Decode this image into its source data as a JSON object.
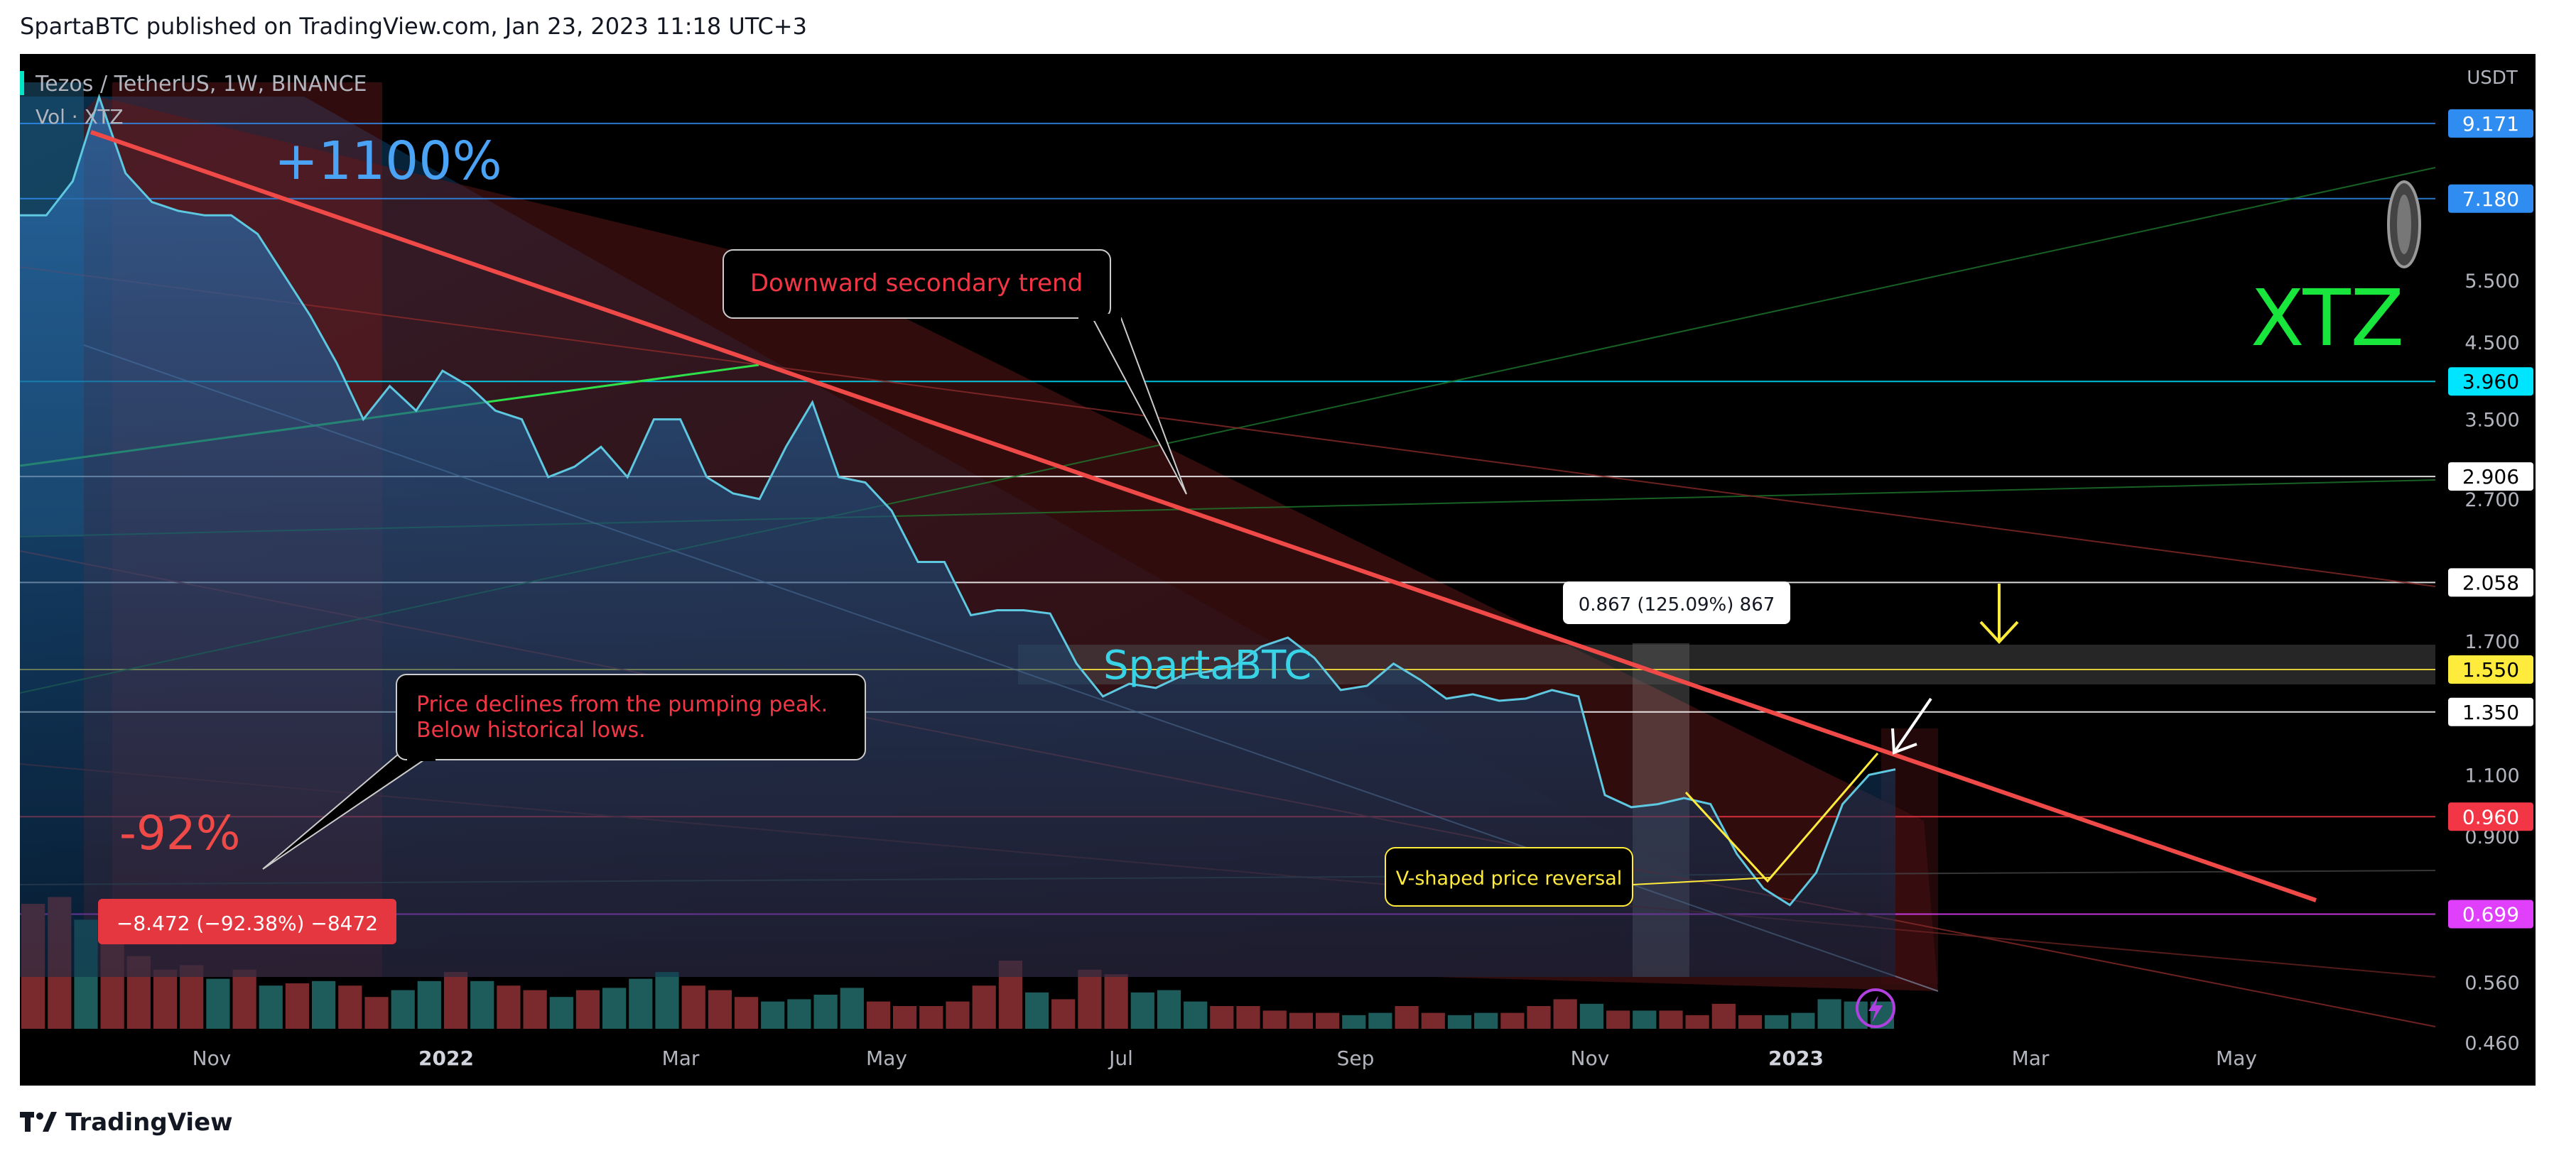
{
  "header": {
    "publisher_text": "SpartaBTC published on TradingView.com, Jan 23, 2023 11:18 UTC+3"
  },
  "footer": {
    "brand": "TradingView"
  },
  "colors": {
    "background": "#000000",
    "price_line": "#5ec8e0",
    "trend_line": "#e8413e",
    "volume_up": "#1d5c5a",
    "volume_down": "#7a2a2c",
    "accent_green": "#19e63c",
    "accent_blue": "#4aa3f5"
  },
  "chart_data": {
    "type": "area",
    "title": "Tezos / TetherUS, 1W, BINANCE",
    "symbol_text": "Tezos / TetherUS, 1W, BINANCE",
    "volume_label": "Vol · XTZ",
    "y_unit": "USDT",
    "y_scale": "log",
    "ylim": [
      0.4,
      11.5
    ],
    "x_ticks": [
      "Nov",
      "2022",
      "Mar",
      "May",
      "Jul",
      "Sep",
      "Nov",
      "2023",
      "Mar",
      "May"
    ],
    "y_ticks": [
      "5.500",
      "4.500",
      "3.500",
      "2.700",
      "1.700",
      "1.100",
      "0.900",
      "0.560",
      "0.460"
    ],
    "series": [
      {
        "values": [
          6.8,
          6.8,
          7.6,
          10.0,
          7.8,
          7.1,
          6.9,
          6.8,
          6.8,
          6.4,
          5.6,
          4.9,
          4.2,
          3.5,
          3.9,
          3.6,
          4.1,
          3.9,
          3.6,
          3.5,
          2.9,
          3.0,
          3.2,
          2.9,
          3.5,
          3.5,
          2.9,
          2.75,
          2.7,
          3.2,
          3.7,
          2.9,
          2.85,
          2.6,
          2.2,
          2.2,
          1.85,
          1.88,
          1.88,
          1.86,
          1.58,
          1.42,
          1.48,
          1.46,
          1.52,
          1.54,
          1.57,
          1.67,
          1.72,
          1.61,
          1.45,
          1.47,
          1.58,
          1.5,
          1.41,
          1.43,
          1.4,
          1.41,
          1.45,
          1.42,
          1.03,
          0.99,
          1.0,
          1.02,
          1.0,
          0.85,
          0.76,
          0.72,
          0.8,
          1.0,
          1.1,
          1.12
        ]
      }
    ],
    "volume": [
      {
        "v": 0.55,
        "up": false
      },
      {
        "v": 0.58,
        "up": false
      },
      {
        "v": 0.48,
        "up": true
      },
      {
        "v": 0.5,
        "up": false
      },
      {
        "v": 0.32,
        "up": false
      },
      {
        "v": 0.26,
        "up": false
      },
      {
        "v": 0.28,
        "up": false
      },
      {
        "v": 0.22,
        "up": true
      },
      {
        "v": 0.26,
        "up": false
      },
      {
        "v": 0.19,
        "up": true
      },
      {
        "v": 0.2,
        "up": false
      },
      {
        "v": 0.21,
        "up": true
      },
      {
        "v": 0.19,
        "up": false
      },
      {
        "v": 0.14,
        "up": false
      },
      {
        "v": 0.17,
        "up": true
      },
      {
        "v": 0.21,
        "up": true
      },
      {
        "v": 0.25,
        "up": false
      },
      {
        "v": 0.21,
        "up": true
      },
      {
        "v": 0.19,
        "up": false
      },
      {
        "v": 0.17,
        "up": false
      },
      {
        "v": 0.14,
        "up": true
      },
      {
        "v": 0.17,
        "up": false
      },
      {
        "v": 0.18,
        "up": true
      },
      {
        "v": 0.22,
        "up": true
      },
      {
        "v": 0.25,
        "up": true
      },
      {
        "v": 0.19,
        "up": false
      },
      {
        "v": 0.17,
        "up": false
      },
      {
        "v": 0.14,
        "up": false
      },
      {
        "v": 0.12,
        "up": true
      },
      {
        "v": 0.13,
        "up": true
      },
      {
        "v": 0.15,
        "up": true
      },
      {
        "v": 0.18,
        "up": true
      },
      {
        "v": 0.12,
        "up": false
      },
      {
        "v": 0.1,
        "up": false
      },
      {
        "v": 0.1,
        "up": false
      },
      {
        "v": 0.12,
        "up": false
      },
      {
        "v": 0.19,
        "up": false
      },
      {
        "v": 0.3,
        "up": false
      },
      {
        "v": 0.16,
        "up": true
      },
      {
        "v": 0.13,
        "up": false
      },
      {
        "v": 0.26,
        "up": false
      },
      {
        "v": 0.24,
        "up": false
      },
      {
        "v": 0.16,
        "up": true
      },
      {
        "v": 0.17,
        "up": true
      },
      {
        "v": 0.12,
        "up": true
      },
      {
        "v": 0.1,
        "up": false
      },
      {
        "v": 0.1,
        "up": false
      },
      {
        "v": 0.08,
        "up": false
      },
      {
        "v": 0.07,
        "up": false
      },
      {
        "v": 0.07,
        "up": false
      },
      {
        "v": 0.06,
        "up": true
      },
      {
        "v": 0.07,
        "up": true
      },
      {
        "v": 0.1,
        "up": false
      },
      {
        "v": 0.07,
        "up": false
      },
      {
        "v": 0.06,
        "up": true
      },
      {
        "v": 0.07,
        "up": true
      },
      {
        "v": 0.07,
        "up": false
      },
      {
        "v": 0.1,
        "up": false
      },
      {
        "v": 0.13,
        "up": false
      },
      {
        "v": 0.11,
        "up": true
      },
      {
        "v": 0.08,
        "up": false
      },
      {
        "v": 0.08,
        "up": true
      },
      {
        "v": 0.08,
        "up": false
      },
      {
        "v": 0.06,
        "up": false
      },
      {
        "v": 0.11,
        "up": false
      },
      {
        "v": 0.06,
        "up": false
      },
      {
        "v": 0.06,
        "up": true
      },
      {
        "v": 0.07,
        "up": true
      },
      {
        "v": 0.13,
        "up": true
      },
      {
        "v": 0.12,
        "up": true
      },
      {
        "v": 0.12,
        "up": true
      }
    ],
    "price_labels": [
      {
        "value": 9.171,
        "text": "9.171",
        "bg": "#2f8cf0",
        "fg": "#ffffff"
      },
      {
        "value": 7.18,
        "text": "7.180",
        "bg": "#2f8cf0",
        "fg": "#ffffff"
      },
      {
        "value": 3.96,
        "text": "3.960",
        "bg": "#00e5ff",
        "fg": "#000000"
      },
      {
        "value": 2.906,
        "text": "2.906",
        "bg": "#ffffff",
        "fg": "#000000"
      },
      {
        "value": 2.058,
        "text": "2.058",
        "bg": "#ffffff",
        "fg": "#000000"
      },
      {
        "value": 1.55,
        "text": "1.550",
        "bg": "#ffeb3b",
        "fg": "#000000"
      },
      {
        "value": 1.35,
        "text": "1.350",
        "bg": "#ffffff",
        "fg": "#000000"
      },
      {
        "value": 0.96,
        "text": "0.960",
        "bg": "#f23645",
        "fg": "#ffffff"
      },
      {
        "value": 0.699,
        "text": "0.699",
        "bg": "#e040fb",
        "fg": "#ffffff"
      }
    ],
    "annotations": {
      "gain": "+1100%",
      "loss": "-92%",
      "ticker": "XTZ",
      "watermark": "SpartaBTC",
      "trend_note": "Downward secondary trend",
      "decline_note_line1": "Price declines from the pumping peak.",
      "decline_note_line2": "Below historical lows.",
      "v_shape_note": "V-shaped price reversal",
      "measure_loss": "−8.472 (−92.38%) −8472",
      "measure_gain": "0.867 (125.09%) 867"
    }
  }
}
